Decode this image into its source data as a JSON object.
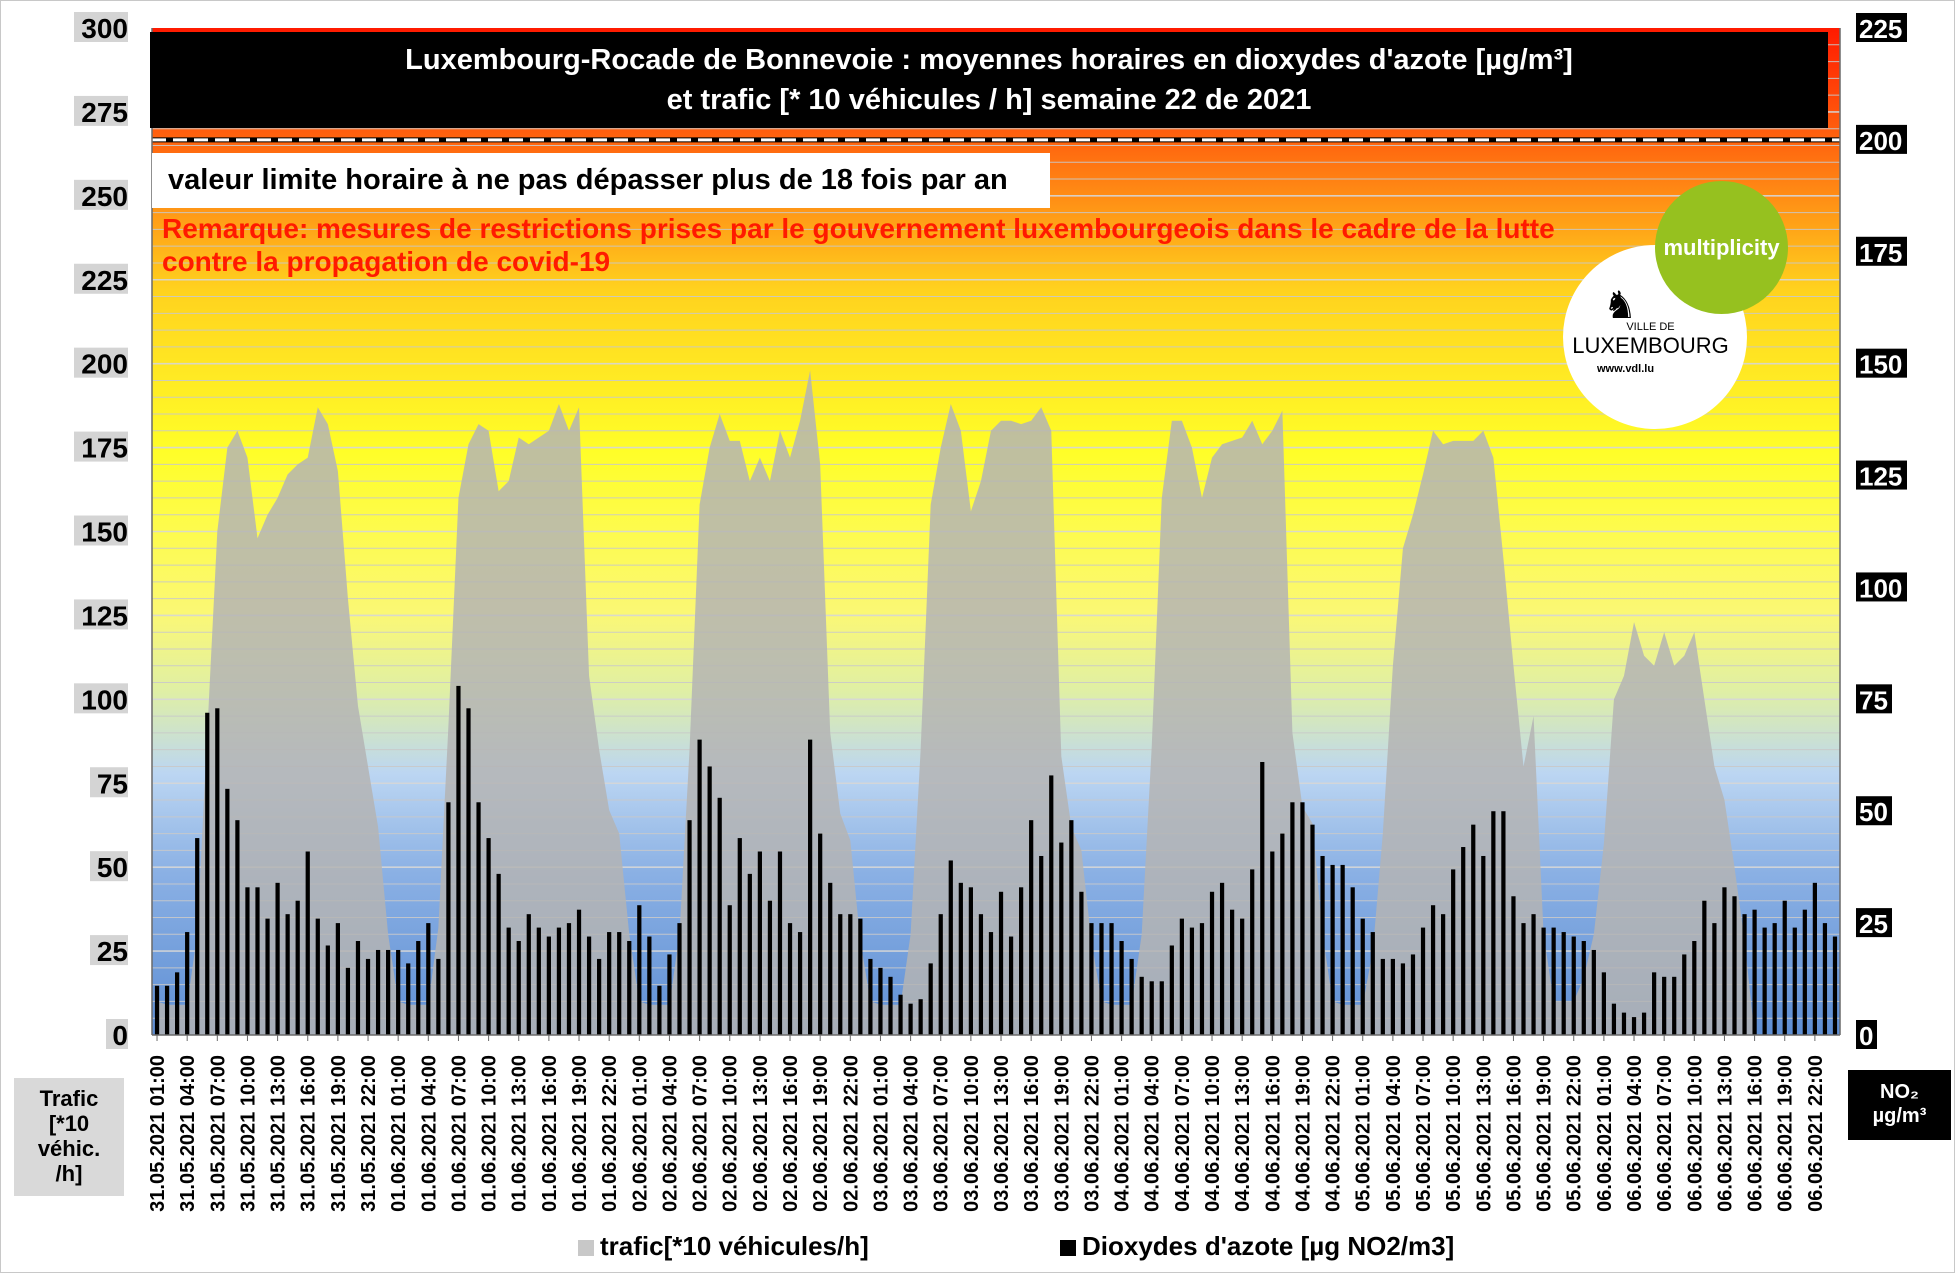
{
  "title_line1": "Luxembourg-Rocade de Bonnevoie : moyennes horaires en dioxydes d'azote [µg/m³]",
  "title_line2": "et trafic [* 10 véhicules / h]  semaine 22 de 2021",
  "limit_text": "valeur limite horaire à ne pas dépasser plus de 18 fois par an",
  "remark_line1": "Remarque: mesures de restrictions prises par le gouvernement luxembourgeois dans le cadre de la lutte",
  "remark_line2": "contre la propagation de covid-19",
  "left_axis_title": [
    "Trafic",
    "[*10",
    "véhic.",
    "/h]"
  ],
  "right_axis_title": [
    "NO₂",
    "µg/m³"
  ],
  "logo": {
    "multiplicity": "multiplicity",
    "ville_de": "VILLE DE",
    "luxembourg": "LUXEMBOURG",
    "website": "www.vdl.lu"
  },
  "colors": {
    "traffic_area": "#b4b4b4",
    "no2_bar": "#000000",
    "limit_line": "#ffffff",
    "remark_text": "#ff1a00",
    "logo_green": "#96c11f"
  },
  "chart_data": {
    "type": "bar",
    "title": "Luxembourg-Rocade de Bonnevoie : moyennes horaires en dioxydes d'azote [µg/m³] et trafic [* 10 véhicules / h]  semaine 22 de 2021",
    "xlabel": "",
    "ylabel_left": "Trafic [*10 véhic. /h]",
    "ylabel_right": "NO2 µg/m3",
    "ylim_left": [
      0,
      300
    ],
    "ylim_right": [
      0,
      225
    ],
    "yticks_left": [
      0,
      25,
      50,
      75,
      100,
      125,
      150,
      175,
      200,
      225,
      250,
      275,
      300
    ],
    "yticks_right": [
      0,
      25,
      50,
      75,
      100,
      125,
      150,
      175,
      200,
      225
    ],
    "hour_start": 1,
    "x_tick_labels": [
      "31.05.2021 01:00",
      "31.05.2021 04:00",
      "31.05.2021 07:00",
      "31.05.2021 10:00",
      "31.05.2021 13:00",
      "31.05.2021 16:00",
      "31.05.2021 19:00",
      "31.05.2021 22:00",
      "01.06.2021 01:00",
      "01.06.2021 04:00",
      "01.06.2021 07:00",
      "01.06.2021 10:00",
      "01.06.2021 13:00",
      "01.06.2021 16:00",
      "01.06.2021 19:00",
      "01.06.2021 22:00",
      "02.06.2021 01:00",
      "02.06.2021 04:00",
      "02.06.2021 07:00",
      "02.06.2021 10:00",
      "02.06.2021 13:00",
      "02.06.2021 16:00",
      "02.06.2021 19:00",
      "02.06.2021 22:00",
      "03.06.2021 01:00",
      "03.06.2021 04:00",
      "03.06.2021 07:00",
      "03.06.2021 10:00",
      "03.06.2021 13:00",
      "03.06.2021 16:00",
      "03.06.2021 19:00",
      "03.06.2021 22:00",
      "04.06.2021 01:00",
      "04.06.2021 04:00",
      "04.06.2021 07:00",
      "04.06.2021 10:00",
      "04.06.2021 13:00",
      "04.06.2021 16:00",
      "04.06.2021 19:00",
      "04.06.2021 22:00",
      "05.06.2021 01:00",
      "05.06.2021 04:00",
      "05.06.2021 07:00",
      "05.06.2021 10:00",
      "05.06.2021 13:00",
      "05.06.2021 16:00",
      "05.06.2021 19:00",
      "05.06.2021 22:00",
      "06.06.2021 01:00",
      "06.06.2021 04:00",
      "06.06.2021 07:00",
      "06.06.2021 10:00",
      "06.06.2021 13:00",
      "06.06.2021 16:00",
      "06.06.2021 19:00",
      "06.06.2021 22:00"
    ],
    "limit_value_no2": 200,
    "series": [
      {
        "name": "trafic[*10 véhicules/h]",
        "kind": "area",
        "axis": "left",
        "values": [
          10,
          9,
          9,
          9,
          30,
          90,
          150,
          175,
          180,
          172,
          148,
          155,
          160,
          167,
          170,
          172,
          187,
          182,
          168,
          130,
          98,
          80,
          62,
          30,
          10,
          9,
          9,
          9,
          32,
          92,
          160,
          176,
          182,
          180,
          162,
          165,
          178,
          176,
          178,
          180,
          188,
          180,
          187,
          107,
          85,
          67,
          60,
          30,
          10,
          9,
          9,
          9,
          30,
          85,
          158,
          175,
          185,
          177,
          177,
          165,
          172,
          165,
          180,
          172,
          183,
          198,
          170,
          90,
          66,
          58,
          28,
          10,
          9,
          9,
          9,
          30,
          85,
          158,
          175,
          188,
          180,
          156,
          165,
          180,
          183,
          183,
          182,
          183,
          187,
          180,
          83,
          62,
          55,
          28,
          10,
          9,
          9,
          9,
          30,
          86,
          160,
          183,
          183,
          175,
          160,
          172,
          176,
          177,
          178,
          183,
          176,
          180,
          186,
          90,
          68,
          63,
          30,
          10,
          9,
          9,
          9,
          25,
          60,
          110,
          145,
          155,
          167,
          180,
          176,
          177,
          177,
          177,
          180,
          172,
          142,
          110,
          80,
          95,
          30,
          10,
          10,
          10,
          17,
          30,
          57,
          100,
          107,
          123,
          113,
          110,
          120,
          110,
          113,
          120,
          100,
          80,
          70,
          50,
          28
        ]
      },
      {
        "name": "Dioxydes d'azote [µg NO2/m3]",
        "kind": "bar",
        "axis": "right",
        "values": [
          11,
          11,
          14,
          23,
          44,
          72,
          73,
          55,
          48,
          33,
          33,
          26,
          34,
          27,
          30,
          41,
          26,
          20,
          25,
          15,
          21,
          17,
          19,
          19,
          19,
          16,
          21,
          25,
          17,
          52,
          78,
          73,
          52,
          44,
          36,
          24,
          21,
          27,
          24,
          22,
          24,
          25,
          28,
          22,
          17,
          23,
          23,
          21,
          29,
          22,
          11,
          18,
          25,
          48,
          66,
          60,
          53,
          29,
          44,
          36,
          41,
          30,
          41,
          25,
          23,
          66,
          45,
          34,
          27,
          27,
          26,
          17,
          15,
          13,
          9,
          7,
          8,
          16,
          27,
          39,
          34,
          33,
          27,
          23,
          32,
          22,
          33,
          48,
          40,
          58,
          43,
          48,
          32,
          25,
          25,
          25,
          21,
          17,
          13,
          12,
          12,
          20,
          26,
          24,
          25,
          32,
          34,
          28,
          26,
          37,
          61,
          41,
          45,
          52,
          52,
          47,
          40,
          38,
          38,
          33,
          26,
          23,
          17,
          17,
          16,
          18,
          24,
          29,
          27,
          37,
          42,
          47,
          40,
          50,
          50,
          31,
          25,
          27,
          24,
          24,
          23,
          22,
          21,
          19,
          14,
          7,
          5,
          4,
          5,
          14,
          13,
          13,
          18,
          21,
          30,
          25,
          33,
          31,
          27,
          28,
          24,
          25,
          30,
          24,
          28,
          34,
          25,
          22,
          14
        ]
      }
    ],
    "legend_position": "bottom"
  }
}
